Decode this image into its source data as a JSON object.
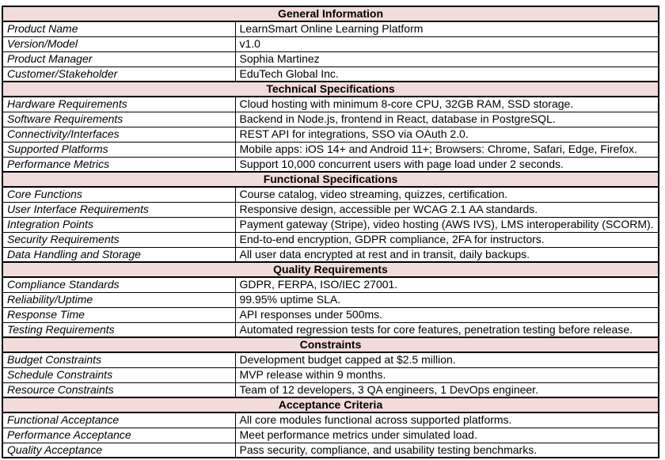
{
  "colors": {
    "section_bg": "#f2dcdb",
    "border": "#000000",
    "text": "#000000"
  },
  "table": {
    "sections": [
      {
        "title": "General Information",
        "rows": [
          [
            "Product Name",
            "LearnSmart Online Learning Platform"
          ],
          [
            "Version/Model",
            "v1.0"
          ],
          [
            "Product Manager",
            "Sophia Martinez"
          ],
          [
            "Customer/Stakeholder",
            "EduTech Global Inc."
          ]
        ]
      },
      {
        "title": "Technical Specifications",
        "rows": [
          [
            "Hardware Requirements",
            "Cloud hosting with minimum 8-core CPU, 32GB RAM, SSD storage."
          ],
          [
            "Software Requirements",
            "Backend in Node.js, frontend in React, database in PostgreSQL."
          ],
          [
            "Connectivity/Interfaces",
            "REST API for integrations, SSO via OAuth 2.0."
          ],
          [
            "Supported Platforms",
            "Mobile apps: iOS 14+ and Android 11+; Browsers: Chrome, Safari, Edge, Firefox."
          ],
          [
            "Performance Metrics",
            "Support 10,000 concurrent users with page load under 2 seconds."
          ]
        ]
      },
      {
        "title": "Functional Specifications",
        "rows": [
          [
            "Core Functions",
            "Course catalog, video streaming, quizzes, certification."
          ],
          [
            "User Interface Requirements",
            "Responsive design, accessible per WCAG 2.1 AA standards."
          ],
          [
            "Integration Points",
            "Payment gateway (Stripe), video hosting (AWS IVS), LMS interoperability (SCORM)."
          ],
          [
            "Security Requirements",
            "End-to-end encryption, GDPR compliance, 2FA for instructors."
          ],
          [
            "Data Handling and Storage",
            "All user data encrypted at rest and in transit, daily backups."
          ]
        ]
      },
      {
        "title": "Quality Requirements",
        "rows": [
          [
            "Compliance Standards",
            "GDPR, FERPA, ISO/IEC 27001."
          ],
          [
            "Reliability/Uptime",
            "99.95% uptime SLA."
          ],
          [
            "Response Time",
            "API responses under 500ms."
          ],
          [
            "Testing Requirements",
            "Automated regression tests for core features, penetration testing before release."
          ]
        ]
      },
      {
        "title": "Constraints",
        "rows": [
          [
            "Budget Constraints",
            "Development budget capped at $2.5 million."
          ],
          [
            "Schedule Constraints",
            "MVP release within 9 months."
          ],
          [
            "Resource Constraints",
            "Team of 12 developers, 3 QA engineers, 1 DevOps engineer."
          ]
        ]
      },
      {
        "title": "Acceptance Criteria",
        "rows": [
          [
            "Functional Acceptance",
            "All core modules functional across supported platforms."
          ],
          [
            "Performance Acceptance",
            "Meet performance metrics under simulated load."
          ],
          [
            "Quality Acceptance",
            "Pass security, compliance, and usability testing benchmarks."
          ]
        ]
      }
    ]
  }
}
